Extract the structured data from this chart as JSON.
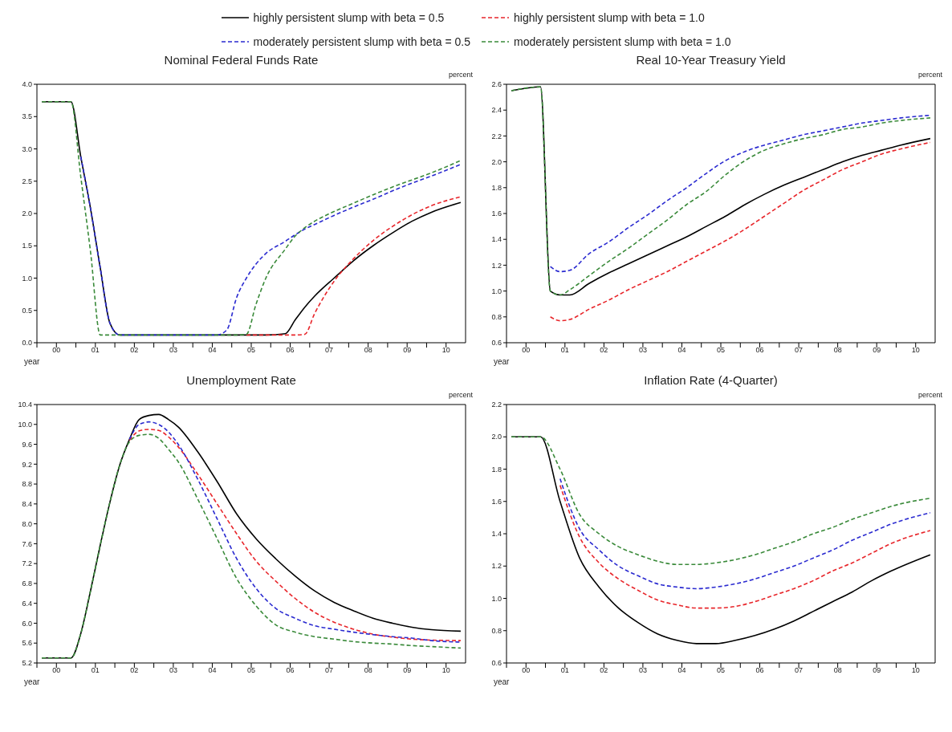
{
  "chart_data": [
    {
      "type": "line",
      "title": "Nominal Federal Funds Rate",
      "xlabel": "year",
      "ylabel": "percent",
      "legend": "top",
      "marker": "none",
      "x": [
        -0.375,
        0.375,
        0.625,
        0.875,
        1.125,
        1.375,
        1.625,
        3.875,
        4.125,
        4.375,
        4.625,
        4.875,
        5.125,
        5.375,
        5.875,
        6.125,
        6.375,
        6.625,
        7.125,
        7.625,
        8.125,
        8.625,
        9.125,
        9.625,
        10.375
      ],
      "xlim": [
        -0.5,
        10.5
      ],
      "ylim": [
        0,
        4
      ],
      "xticks": [
        {
          "value": -0.5,
          "label": null
        },
        {
          "value": 0,
          "label": "00"
        },
        {
          "value": 0.5,
          "label": null
        },
        {
          "value": 1,
          "label": "01"
        },
        {
          "value": 1.5,
          "label": null
        },
        {
          "value": 2,
          "label": "02"
        },
        {
          "value": 2.5,
          "label": null
        },
        {
          "value": 3,
          "label": "03"
        },
        {
          "value": 3.5,
          "label": null
        },
        {
          "value": 4,
          "label": "04"
        },
        {
          "value": 4.5,
          "label": null
        },
        {
          "value": 5,
          "label": "05"
        },
        {
          "value": 5.5,
          "label": null
        },
        {
          "value": 6,
          "label": "06"
        },
        {
          "value": 6.5,
          "label": null
        },
        {
          "value": 7,
          "label": "07"
        },
        {
          "value": 7.5,
          "label": null
        },
        {
          "value": 8,
          "label": "08"
        },
        {
          "value": 8.5,
          "label": null
        },
        {
          "value": 9,
          "label": "09"
        },
        {
          "value": 9.5,
          "label": null
        },
        {
          "value": 10,
          "label": "10"
        }
      ],
      "yticks": [
        {
          "value": 0,
          "label": "0.0"
        },
        0.5,
        {
          "value": 1,
          "label": "1.0"
        },
        1.5,
        {
          "value": 2,
          "label": "2.0"
        },
        2.5,
        {
          "value": 3,
          "label": "3.0"
        },
        3.5,
        {
          "value": 4,
          "label": "4.0"
        }
      ],
      "series": [
        {
          "name": "highly persistent slump with beta = 0.5",
          "color": "#000000",
          "line_style": "solid",
          "values": [
            3.73,
            3.73,
            2.88,
            2.08,
            1.16,
            0.3,
            0.12,
            0.12,
            0.12,
            0.12,
            0.12,
            0.12,
            0.12,
            0.12,
            0.14,
            0.35,
            0.55,
            0.72,
            1.0,
            1.27,
            1.5,
            1.7,
            1.88,
            2.02,
            2.17
          ]
        },
        {
          "name": "highly persistent slump with beta = 1.0",
          "color": "#e8262b",
          "line_style": "dashed",
          "values": [
            null,
            null,
            null,
            null,
            null,
            null,
            null,
            null,
            null,
            null,
            null,
            0.12,
            0.12,
            0.12,
            0.12,
            0.12,
            0.13,
            0.45,
            0.95,
            1.3,
            1.58,
            1.8,
            1.98,
            2.12,
            2.26
          ]
        },
        {
          "name": "moderately persistent slump with beta = 0.5",
          "color": "#2a2ad0",
          "line_style": "dashed",
          "values": [
            null,
            null,
            2.88,
            2.08,
            1.16,
            0.3,
            0.12,
            0.12,
            0.12,
            0.2,
            0.7,
            1.0,
            1.22,
            1.38,
            1.57,
            1.67,
            1.76,
            1.83,
            1.97,
            2.1,
            2.22,
            2.35,
            2.47,
            2.58,
            2.76
          ]
        },
        {
          "name": "moderately persistent slump with beta = 1.0",
          "color": "#3a8a3a",
          "line_style": "dashed",
          "values": [
            3.73,
            3.73,
            2.57,
            1.41,
            0.12,
            0.12,
            0.12,
            0.12,
            0.12,
            0.12,
            0.12,
            0.13,
            0.6,
            1.0,
            1.45,
            1.65,
            1.78,
            1.88,
            2.03,
            2.16,
            2.29,
            2.41,
            2.52,
            2.63,
            2.82
          ]
        }
      ]
    },
    {
      "type": "line",
      "title": "Real 10-Year Treasury Yield",
      "xlabel": "year",
      "ylabel": "percent",
      "marker": "none",
      "x": [
        -0.375,
        0.375,
        0.625,
        0.875,
        1.125,
        1.625,
        2.125,
        2.625,
        3.125,
        3.625,
        4.125,
        4.625,
        5.125,
        5.625,
        6.125,
        6.625,
        7.125,
        7.625,
        8.125,
        8.625,
        9.125,
        9.625,
        10.375
      ],
      "xlim": [
        -0.5,
        10.5
      ],
      "ylim": [
        0.6,
        2.6
      ],
      "xticks": [
        {
          "value": -0.5,
          "label": null
        },
        {
          "value": 0,
          "label": "00"
        },
        {
          "value": 0.5,
          "label": null
        },
        {
          "value": 1,
          "label": "01"
        },
        {
          "value": 1.5,
          "label": null
        },
        {
          "value": 2,
          "label": "02"
        },
        {
          "value": 2.5,
          "label": null
        },
        {
          "value": 3,
          "label": "03"
        },
        {
          "value": 3.5,
          "label": null
        },
        {
          "value": 4,
          "label": "04"
        },
        {
          "value": 4.5,
          "label": null
        },
        {
          "value": 5,
          "label": "05"
        },
        {
          "value": 5.5,
          "label": null
        },
        {
          "value": 6,
          "label": "06"
        },
        {
          "value": 6.5,
          "label": null
        },
        {
          "value": 7,
          "label": "07"
        },
        {
          "value": 7.5,
          "label": null
        },
        {
          "value": 8,
          "label": "08"
        },
        {
          "value": 8.5,
          "label": null
        },
        {
          "value": 9,
          "label": "09"
        },
        {
          "value": 9.5,
          "label": null
        },
        {
          "value": 10,
          "label": "10"
        }
      ],
      "yticks": [
        0.6,
        0.8,
        {
          "value": 1,
          "label": "1.0"
        },
        1.2,
        1.4,
        1.6,
        1.8,
        {
          "value": 2,
          "label": "2.0"
        },
        2.2,
        2.4,
        2.6
      ],
      "series": [
        {
          "color": "#000000",
          "line_style": "solid",
          "values": [
            2.55,
            2.58,
            1.0,
            0.97,
            0.97,
            1.06,
            1.14,
            1.21,
            1.28,
            1.35,
            1.42,
            1.5,
            1.58,
            1.67,
            1.75,
            1.82,
            1.88,
            1.94,
            2.0,
            2.05,
            2.09,
            2.13,
            2.18
          ]
        },
        {
          "color": "#e8262b",
          "line_style": "dashed",
          "values": [
            null,
            null,
            0.8,
            0.77,
            0.78,
            0.86,
            0.93,
            1.01,
            1.08,
            1.15,
            1.23,
            1.31,
            1.39,
            1.48,
            1.58,
            1.68,
            1.78,
            1.86,
            1.94,
            2.0,
            2.06,
            2.1,
            2.15
          ]
        },
        {
          "color": "#2a2ad0",
          "line_style": "dashed",
          "values": [
            null,
            null,
            1.19,
            1.15,
            1.16,
            1.29,
            1.38,
            1.49,
            1.59,
            1.7,
            1.8,
            1.91,
            2.01,
            2.08,
            2.13,
            2.17,
            2.21,
            2.24,
            2.27,
            2.3,
            2.32,
            2.34,
            2.36
          ]
        },
        {
          "color": "#3a8a3a",
          "line_style": "dashed",
          "values": [
            2.55,
            2.58,
            1.0,
            0.97,
            1.01,
            1.12,
            1.23,
            1.33,
            1.44,
            1.55,
            1.67,
            1.77,
            1.9,
            2.01,
            2.09,
            2.14,
            2.18,
            2.21,
            2.25,
            2.27,
            2.3,
            2.32,
            2.34
          ]
        }
      ]
    },
    {
      "type": "line",
      "title": "Unemployment Rate",
      "xlabel": "year",
      "ylabel": "percent",
      "marker": "none",
      "x": [
        -0.375,
        0.375,
        0.625,
        0.875,
        1.125,
        1.375,
        1.625,
        1.875,
        2.125,
        2.375,
        2.625,
        2.875,
        3.125,
        3.625,
        4.125,
        4.625,
        5.125,
        5.625,
        6.125,
        6.625,
        7.125,
        7.625,
        8.125,
        8.625,
        9.125,
        9.625,
        10.375
      ],
      "xlim": [
        -0.5,
        10.5
      ],
      "ylim": [
        5.2,
        10.4
      ],
      "xticks": [
        {
          "value": -0.5,
          "label": null
        },
        {
          "value": 0,
          "label": "00"
        },
        {
          "value": 0.5,
          "label": null
        },
        {
          "value": 1,
          "label": "01"
        },
        {
          "value": 1.5,
          "label": null
        },
        {
          "value": 2,
          "label": "02"
        },
        {
          "value": 2.5,
          "label": null
        },
        {
          "value": 3,
          "label": "03"
        },
        {
          "value": 3.5,
          "label": null
        },
        {
          "value": 4,
          "label": "04"
        },
        {
          "value": 4.5,
          "label": null
        },
        {
          "value": 5,
          "label": "05"
        },
        {
          "value": 5.5,
          "label": null
        },
        {
          "value": 6,
          "label": "06"
        },
        {
          "value": 6.5,
          "label": null
        },
        {
          "value": 7,
          "label": "07"
        },
        {
          "value": 7.5,
          "label": null
        },
        {
          "value": 8,
          "label": "08"
        },
        {
          "value": 8.5,
          "label": null
        },
        {
          "value": 9,
          "label": "09"
        },
        {
          "value": 9.5,
          "label": null
        },
        {
          "value": 10,
          "label": "10"
        }
      ],
      "yticks": [
        5.2,
        5.6,
        {
          "value": 6,
          "label": "6.0"
        },
        6.4,
        6.8,
        7.2,
        7.6,
        {
          "value": 8,
          "label": "8.0"
        },
        8.4,
        8.8,
        9.2,
        9.6,
        {
          "value": 10,
          "label": "10.0"
        },
        10.4
      ],
      "series": [
        {
          "color": "#000000",
          "line_style": "solid",
          "values": [
            5.3,
            5.3,
            5.79,
            6.65,
            7.57,
            8.44,
            9.18,
            9.7,
            10.1,
            10.18,
            10.2,
            10.1,
            9.95,
            9.45,
            8.85,
            8.2,
            7.7,
            7.3,
            6.95,
            6.65,
            6.42,
            6.25,
            6.1,
            6.0,
            5.92,
            5.87,
            5.84
          ]
        },
        {
          "color": "#e8262b",
          "line_style": "dashed",
          "values": [
            null,
            null,
            null,
            null,
            null,
            null,
            null,
            9.68,
            9.87,
            9.9,
            9.88,
            9.75,
            9.55,
            9.0,
            8.4,
            7.8,
            7.25,
            6.85,
            6.5,
            6.22,
            6.02,
            5.88,
            5.78,
            5.72,
            5.68,
            5.66,
            5.65
          ]
        },
        {
          "color": "#2a2ad0",
          "line_style": "dashed",
          "values": [
            null,
            null,
            null,
            null,
            null,
            null,
            null,
            9.7,
            10.0,
            10.05,
            10.0,
            9.85,
            9.6,
            8.9,
            8.1,
            7.3,
            6.7,
            6.3,
            6.1,
            5.95,
            5.88,
            5.82,
            5.77,
            5.73,
            5.7,
            5.65,
            5.62
          ]
        },
        {
          "color": "#3a8a3a",
          "line_style": "dashed",
          "values": [
            5.3,
            5.3,
            5.79,
            6.65,
            7.57,
            8.44,
            9.18,
            9.65,
            9.78,
            9.8,
            9.72,
            9.5,
            9.25,
            8.5,
            7.7,
            6.9,
            6.35,
            5.97,
            5.82,
            5.73,
            5.68,
            5.63,
            5.6,
            5.58,
            5.55,
            5.53,
            5.5
          ]
        }
      ]
    },
    {
      "type": "line",
      "title": "Inflation Rate (4-Quarter)",
      "xlabel": "year",
      "ylabel": "percent",
      "marker": "none",
      "x": [
        -0.375,
        0.375,
        0.875,
        1.375,
        1.875,
        2.375,
        2.875,
        3.375,
        3.875,
        4.375,
        4.875,
        5.375,
        5.875,
        6.375,
        6.875,
        7.375,
        7.875,
        8.375,
        8.875,
        9.375,
        10.375
      ],
      "xlim": [
        -0.5,
        10.5
      ],
      "ylim": [
        0.6,
        2.2
      ],
      "xticks": [
        {
          "value": -0.5,
          "label": null
        },
        {
          "value": 0,
          "label": "00"
        },
        {
          "value": 0.5,
          "label": null
        },
        {
          "value": 1,
          "label": "01"
        },
        {
          "value": 1.5,
          "label": null
        },
        {
          "value": 2,
          "label": "02"
        },
        {
          "value": 2.5,
          "label": null
        },
        {
          "value": 3,
          "label": "03"
        },
        {
          "value": 3.5,
          "label": null
        },
        {
          "value": 4,
          "label": "04"
        },
        {
          "value": 4.5,
          "label": null
        },
        {
          "value": 5,
          "label": "05"
        },
        {
          "value": 5.5,
          "label": null
        },
        {
          "value": 6,
          "label": "06"
        },
        {
          "value": 6.5,
          "label": null
        },
        {
          "value": 7,
          "label": "07"
        },
        {
          "value": 7.5,
          "label": null
        },
        {
          "value": 8,
          "label": "08"
        },
        {
          "value": 8.5,
          "label": null
        },
        {
          "value": 9,
          "label": "09"
        },
        {
          "value": 9.5,
          "label": null
        },
        {
          "value": 10,
          "label": "10"
        }
      ],
      "yticks": [
        0.6,
        0.8,
        {
          "value": 1,
          "label": "1.0"
        },
        1.2,
        1.4,
        1.6,
        1.8,
        {
          "value": 2,
          "label": "2.0"
        },
        2.2
      ],
      "series": [
        {
          "color": "#000000",
          "line_style": "solid",
          "values": [
            2.0,
            2.0,
            1.6,
            1.25,
            1.07,
            0.94,
            0.85,
            0.78,
            0.74,
            0.72,
            0.72,
            0.74,
            0.77,
            0.81,
            0.86,
            0.92,
            0.98,
            1.04,
            1.11,
            1.17,
            1.27
          ]
        },
        {
          "color": "#e8262b",
          "line_style": "dashed",
          "values": [
            null,
            null,
            1.7,
            1.38,
            1.22,
            1.12,
            1.05,
            0.99,
            0.96,
            0.94,
            0.94,
            0.95,
            0.98,
            1.02,
            1.06,
            1.11,
            1.17,
            1.22,
            1.28,
            1.34,
            1.42
          ]
        },
        {
          "color": "#2a2ad0",
          "line_style": "dashed",
          "values": [
            null,
            null,
            1.74,
            1.43,
            1.3,
            1.2,
            1.14,
            1.09,
            1.07,
            1.06,
            1.07,
            1.09,
            1.12,
            1.16,
            1.2,
            1.25,
            1.3,
            1.36,
            1.41,
            1.46,
            1.53
          ]
        },
        {
          "color": "#3a8a3a",
          "line_style": "dashed",
          "values": [
            2.0,
            2.0,
            1.8,
            1.52,
            1.4,
            1.32,
            1.27,
            1.23,
            1.21,
            1.21,
            1.22,
            1.24,
            1.27,
            1.31,
            1.35,
            1.4,
            1.44,
            1.49,
            1.53,
            1.57,
            1.62
          ]
        }
      ]
    }
  ]
}
